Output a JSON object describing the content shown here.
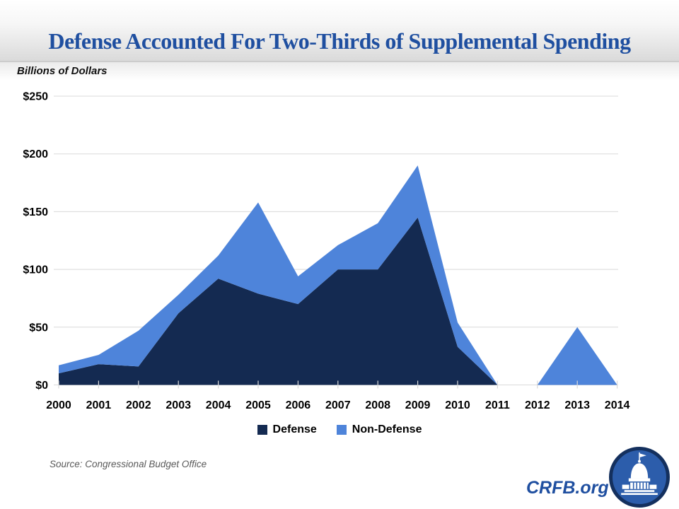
{
  "header": {
    "title": "Defense Accounted For Two-Thirds of Supplemental Spending"
  },
  "y_axis_units": "Billions of Dollars",
  "chart_data": {
    "type": "area",
    "stacked": true,
    "title": "Defense Accounted For Two-Thirds of Supplemental Spending",
    "categories": [
      "2000",
      "2001",
      "2002",
      "2003",
      "2004",
      "2005",
      "2006",
      "2007",
      "2008",
      "2009",
      "2010",
      "2011",
      "2012",
      "2013",
      "2014"
    ],
    "series": [
      {
        "name": "Defense",
        "color": "#142a51",
        "values": [
          10,
          18,
          16,
          62,
          92,
          79,
          70,
          100,
          100,
          145,
          33,
          0,
          0,
          0,
          0
        ]
      },
      {
        "name": "Non-Defense",
        "color": "#4e84da",
        "values": [
          7,
          8,
          31,
          16,
          20,
          79,
          24,
          21,
          40,
          45,
          21,
          0,
          0,
          50,
          0
        ]
      }
    ],
    "totals": [
      17,
      26,
      47,
      78,
      112,
      158,
      94,
      121,
      140,
      190,
      54,
      0,
      0,
      50,
      0
    ],
    "xlabel": "",
    "ylabel": "Billions of Dollars",
    "ylim": [
      0,
      250
    ],
    "yticks": [
      0,
      50,
      100,
      150,
      200,
      250
    ],
    "ytick_labels": [
      "$0",
      "$50",
      "$100",
      "$150",
      "$200",
      "$250"
    ],
    "grid": true,
    "legend_position": "bottom"
  },
  "footer": {
    "source": "Source: Congressional Budget Office",
    "brand": "CRFB.org"
  },
  "logo": {
    "name": "capitol-dome-logo"
  },
  "colors": {
    "title_text": "#1f4fa0",
    "grid": "#d9d9d9",
    "tick": "#d9d9d9",
    "axis_text": "#000000",
    "source_text": "#595959",
    "brand_text": "#1f4fa0",
    "logo_ring": "#14305e",
    "logo_fill": "#2c5dab"
  }
}
